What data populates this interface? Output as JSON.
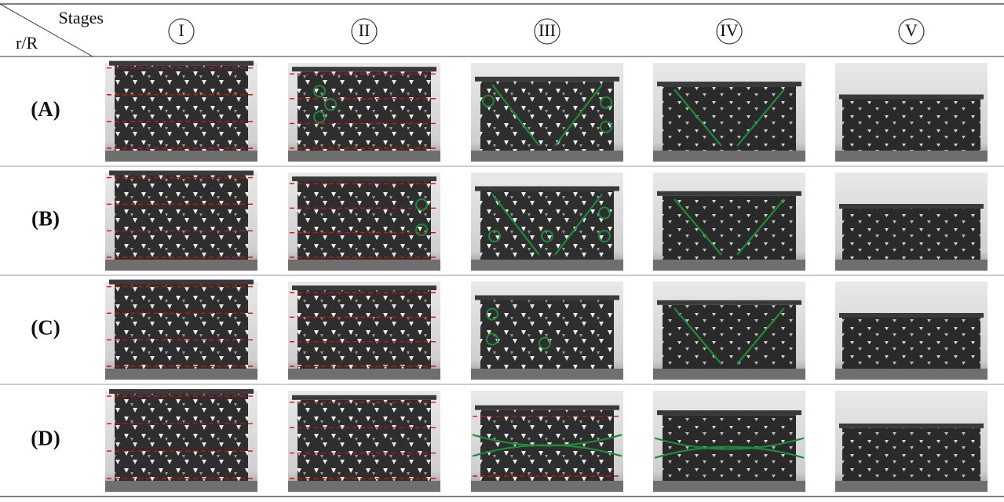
{
  "header": {
    "corner_top": "Stages",
    "corner_bottom": "r/R",
    "stages": [
      "I",
      "II",
      "III",
      "IV",
      "V"
    ]
  },
  "rows": [
    "(A)",
    "(B)",
    "(C)",
    "(D)"
  ]
}
